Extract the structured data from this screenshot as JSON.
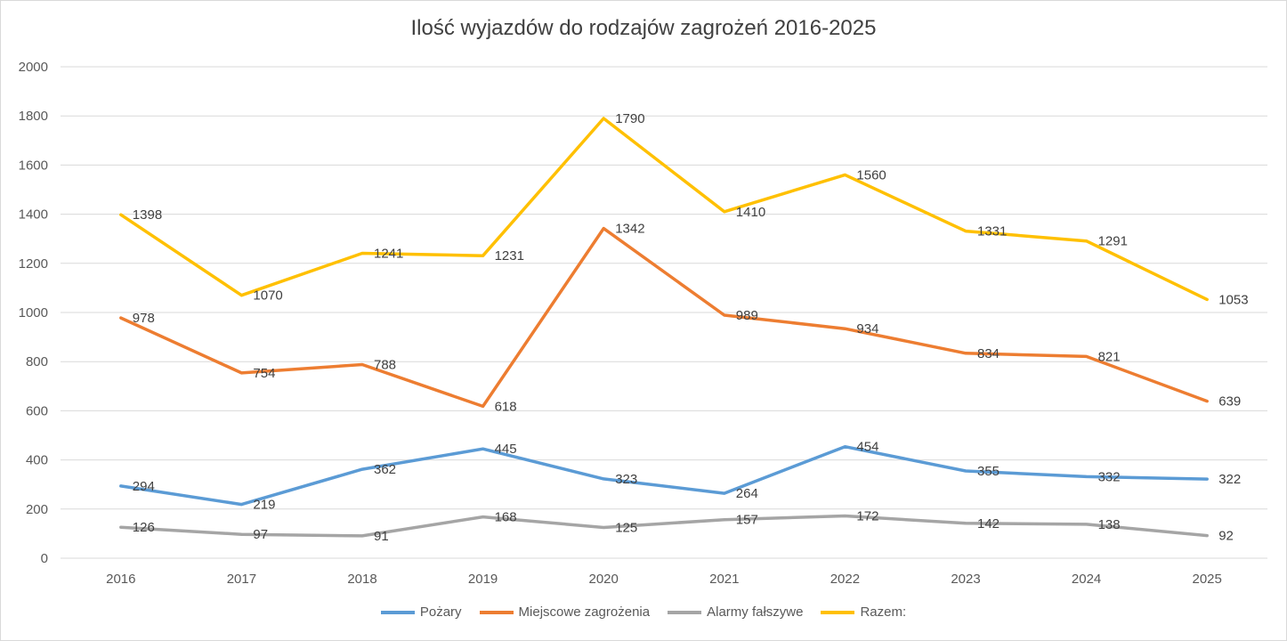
{
  "chart_data": {
    "type": "line",
    "title": "Ilość wyjazdów do rodzajów zagrożeń 2016-2025",
    "x": [
      "2016",
      "2017",
      "2018",
      "2019",
      "2020",
      "2021",
      "2022",
      "2023",
      "2024",
      "2025"
    ],
    "ylim": [
      0,
      2000
    ],
    "yticks": [
      0,
      200,
      400,
      600,
      800,
      1000,
      1200,
      1400,
      1600,
      1800,
      2000
    ],
    "grid": true,
    "legend_position": "bottom",
    "series": [
      {
        "name": "Pożary",
        "color": "#5b9bd5",
        "values": [
          294,
          219,
          362,
          445,
          323,
          264,
          454,
          355,
          332,
          322
        ]
      },
      {
        "name": "Miejscowe zagrożenia",
        "color": "#ed7d31",
        "values": [
          978,
          754,
          788,
          618,
          1342,
          989,
          934,
          834,
          821,
          639
        ]
      },
      {
        "name": "Alarmy fałszywe",
        "color": "#a5a5a5",
        "values": [
          126,
          97,
          91,
          168,
          125,
          157,
          172,
          142,
          138,
          92
        ]
      },
      {
        "name": "Razem:",
        "color": "#ffc000",
        "values": [
          1398,
          1070,
          1241,
          1231,
          1790,
          1410,
          1560,
          1331,
          1291,
          1053
        ]
      }
    ]
  }
}
